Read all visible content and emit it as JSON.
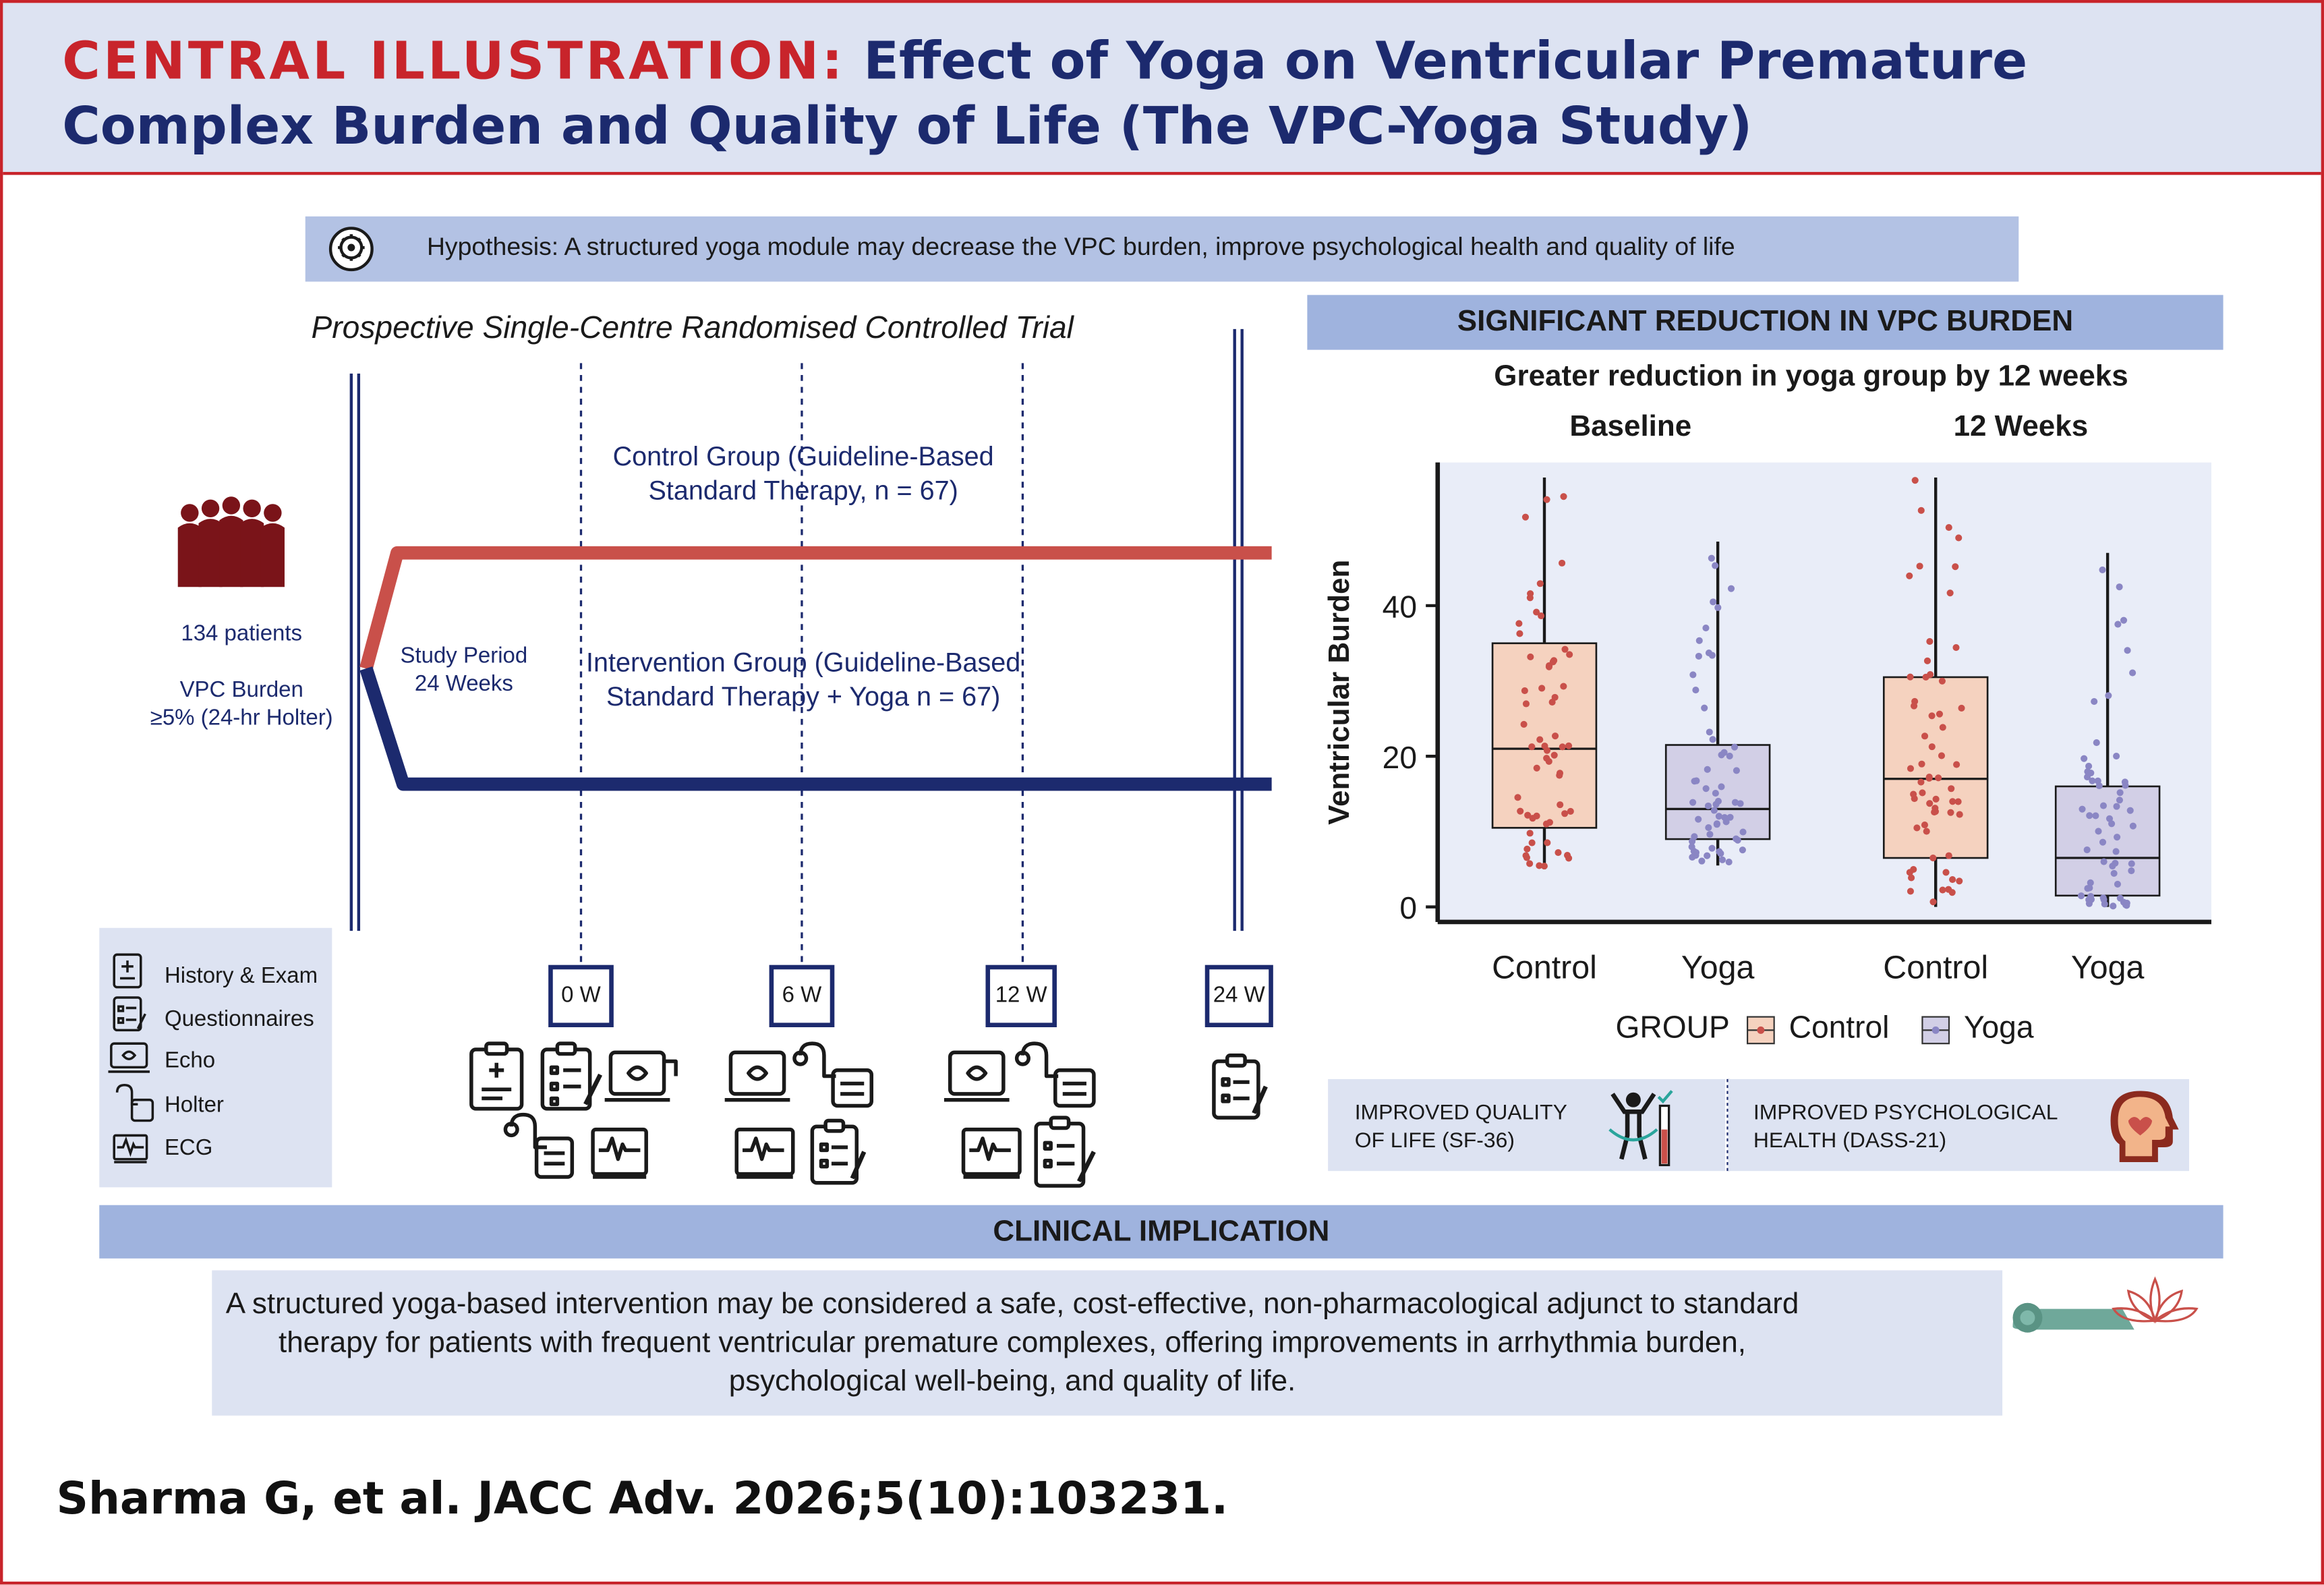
{
  "header": {
    "label": "CENTRAL ILLUSTRATION:",
    "title": "Effect of Yoga on Ventricular Premature Complex Burden and Quality of Life (The VPC-Yoga Study)"
  },
  "hypothesis": "Hypothesis: A structured yoga module may decrease the VPC burden, improve psychological health and quality of life",
  "trial": {
    "design": "Prospective Single-Centre Randomised Controlled Trial",
    "patients": "134 patients",
    "inclusion_line1": "VPC Burden",
    "inclusion_line2": "≥5% (24-hr Holter)",
    "study_period_line1": "Study Period",
    "study_period_line2": "24 Weeks",
    "control_line1": "Control Group (Guideline-Based",
    "control_line2": "Standard Therapy, n = 67)",
    "intervention_line1": "Intervention Group (Guideline-Based",
    "intervention_line2": "Standard Therapy + Yoga n = 67)",
    "timepoints": [
      "0 W",
      "6 W",
      "12 W",
      "24 W"
    ],
    "control_color": "#c9504a",
    "intervention_color": "#1c2a6e"
  },
  "assessments": [
    {
      "label": "History & Exam",
      "icon": "clipboard-medical-icon"
    },
    {
      "label": "Questionnaires",
      "icon": "questionnaire-icon"
    },
    {
      "label": "Echo",
      "icon": "echo-monitor-icon"
    },
    {
      "label": "Holter",
      "icon": "holter-monitor-icon"
    },
    {
      "label": "ECG",
      "icon": "ecg-machine-icon"
    }
  ],
  "results": {
    "banner": "SIGNIFICANT REDUCTION IN VPC BURDEN",
    "subtitle": "Greater reduction in yoga group by 12 weeks",
    "panel_baseline": "Baseline",
    "panel_12w": "12 Weeks",
    "legend_title": "GROUP",
    "legend_control": "Control",
    "legend_yoga": "Yoga"
  },
  "chart_data": {
    "type": "box",
    "ylabel": "Ventricular Burden",
    "ylim": [
      -2,
      59
    ],
    "yticks": [
      0,
      20,
      40
    ],
    "panels": [
      "Baseline",
      "12 Weeks"
    ],
    "categories": [
      "Control",
      "Yoga",
      "Control",
      "Yoga"
    ],
    "series": [
      {
        "name": "Control",
        "panel": "Baseline",
        "min": 5,
        "q1": 10.5,
        "median": 21,
        "q3": 35,
        "max": 57,
        "color": "#f5d2bf",
        "point_color": "#c9504a"
      },
      {
        "name": "Yoga",
        "panel": "Baseline",
        "min": 5.5,
        "q1": 9,
        "median": 13,
        "q3": 21.5,
        "max": 48.5,
        "color": "#d2cfe6",
        "point_color": "#8a86c4"
      },
      {
        "name": "Control",
        "panel": "12 Weeks",
        "min": 0,
        "q1": 6.5,
        "median": 17,
        "q3": 30.5,
        "max": 57,
        "color": "#f5d2bf",
        "point_color": "#c9504a"
      },
      {
        "name": "Yoga",
        "panel": "12 Weeks",
        "min": 0,
        "q1": 1.5,
        "median": 6.5,
        "q3": 16,
        "max": 47,
        "color": "#d2cfe6",
        "point_color": "#8a86c4"
      }
    ]
  },
  "outcomes": [
    {
      "line1": "IMPROVED QUALITY",
      "line2": "OF LIFE (SF-36)",
      "icon": "fitness-person-icon"
    },
    {
      "line1": "IMPROVED PSYCHOLOGICAL",
      "line2": "HEALTH (DASS-21)",
      "icon": "mental-health-head-icon"
    }
  ],
  "implication": {
    "banner": "CLINICAL IMPLICATION",
    "text_line1": "A structured yoga-based intervention may be considered a safe, cost-effective, non-pharmacological adjunct to standard",
    "text_line2": "therapy for patients with frequent ventricular premature complexes, offering improvements in arrhythmia burden,",
    "text_line3": "psychological well-being, and quality of life."
  },
  "citation": "Sharma G, et al. JACC Adv. 2026;5(10):103231."
}
